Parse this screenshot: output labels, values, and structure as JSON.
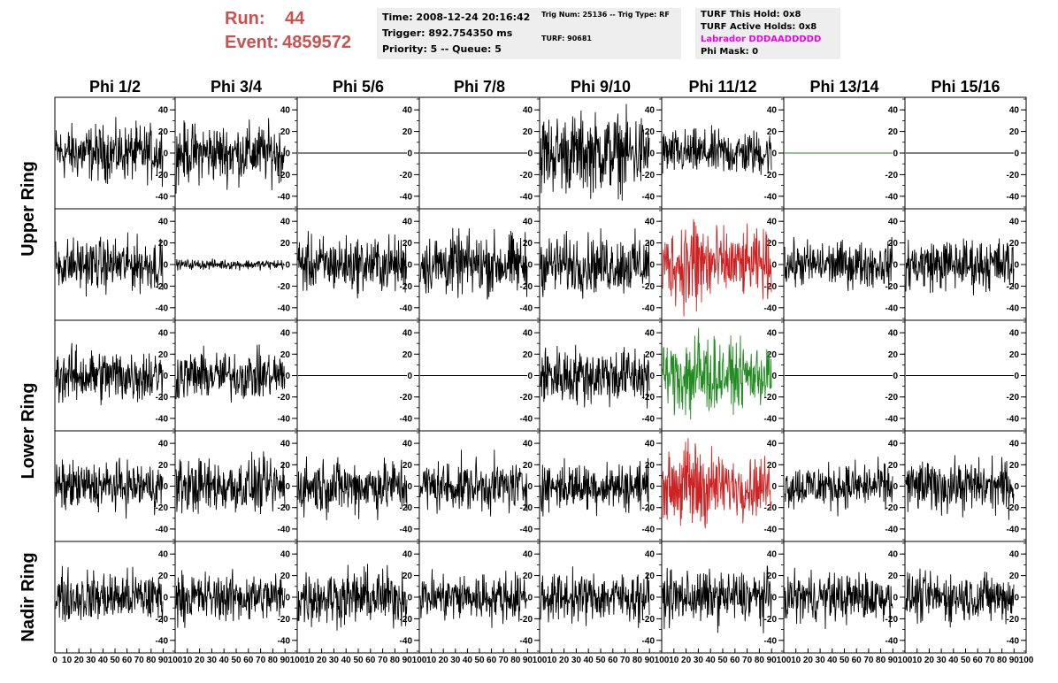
{
  "header": {
    "run_label": "Run:",
    "run_value": "44",
    "event_label": "Event:",
    "event_value": "4859572",
    "time": "Time: 2008-12-24 20:16:42",
    "trigger": "Trigger: 892.754350 ms",
    "priority": "Priority: 5 -- Queue: 5",
    "trig_num": "Trig Num: 25136 -- Trig Type: RF",
    "turf": "TURF: 90681",
    "turf_hold": "TURF This Hold: 0x8",
    "turf_active": "TURF Active Holds: 0x8",
    "labrador": "Labrador DDDAADDDDD",
    "phi_mask": "Phi Mask: 0"
  },
  "colors": {
    "run_text": "#cf4f4f",
    "labrador": "#ee00ee",
    "trace_default": "#000000",
    "trace_red": "#cc2222",
    "trace_green": "#228b22"
  },
  "chart_data": {
    "type": "line",
    "phi_labels": [
      "Phi 1/2",
      "Phi 3/4",
      "Phi 5/6",
      "Phi 7/8",
      "Phi 9/10",
      "Phi 11/12",
      "Phi 13/14",
      "Phi 15/16"
    ],
    "ring_labels": [
      "Upper Ring",
      "Lower Ring",
      "Nadir Ring"
    ],
    "xlim": [
      0,
      100
    ],
    "ylim": [
      -50,
      50
    ],
    "x_ticks": [
      "0",
      "10",
      "20",
      "30",
      "40",
      "50",
      "60",
      "70",
      "80",
      "90",
      "100"
    ],
    "y_ticks": [
      "40",
      "20",
      "0",
      "-20",
      "-40"
    ],
    "panel_amplitude": [
      [
        17,
        18,
        0,
        0,
        24,
        14,
        0,
        0
      ],
      [
        16,
        3,
        17,
        19,
        18,
        20,
        14,
        16
      ],
      [
        17,
        15,
        0,
        0,
        18,
        19,
        0,
        0
      ],
      [
        15,
        17,
        17,
        16,
        15,
        18,
        14,
        16
      ],
      [
        16,
        15,
        17,
        15,
        15,
        16,
        15,
        15
      ]
    ],
    "panel_color": [
      [
        "black",
        "black",
        "black",
        "black",
        "black",
        "black",
        "green",
        "black"
      ],
      [
        "black",
        "black",
        "black",
        "black",
        "black",
        "red",
        "black",
        "black"
      ],
      [
        "black",
        "black",
        "black",
        "black",
        "black",
        "green",
        "black",
        "black"
      ],
      [
        "black",
        "black",
        "black",
        "black",
        "black",
        "red",
        "black",
        "black"
      ],
      [
        "black",
        "black",
        "black",
        "black",
        "black",
        "black",
        "black",
        "black"
      ]
    ]
  }
}
